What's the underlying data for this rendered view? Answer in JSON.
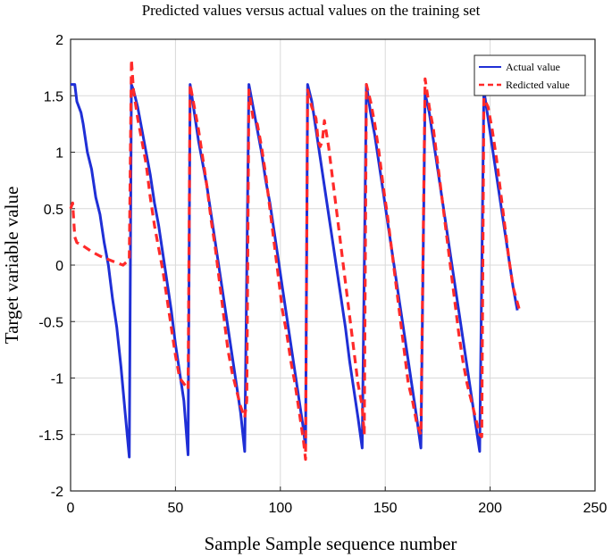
{
  "chart_data": {
    "type": "line",
    "title": "Predicted values versus actual values on the training set",
    "xlabel": "Sample Sample sequence number",
    "ylabel": "Target variable value",
    "xlim": [
      0,
      250
    ],
    "ylim": [
      -2,
      2
    ],
    "xticks": [
      0,
      50,
      100,
      150,
      200,
      250
    ],
    "yticks": [
      2,
      1.5,
      1,
      0.5,
      0,
      -0.5,
      -1,
      -1.5,
      -2
    ],
    "xtick_labels": [
      "0",
      "50",
      "100",
      "150",
      "200",
      "250"
    ],
    "ytick_labels": [
      "2",
      "1.5",
      "1",
      "0.5",
      "0",
      "-0.5",
      "-1",
      "-1.5",
      "-2"
    ],
    "grid": true,
    "legend_position": "top-right",
    "series": [
      {
        "name": "Actual value",
        "color": "#1f2fd6",
        "style": "solid",
        "points": [
          [
            0,
            1.6
          ],
          [
            2,
            1.6
          ],
          [
            3,
            1.45
          ],
          [
            5,
            1.35
          ],
          [
            6,
            1.25
          ],
          [
            8,
            1.0
          ],
          [
            10,
            0.85
          ],
          [
            12,
            0.6
          ],
          [
            14,
            0.45
          ],
          [
            16,
            0.2
          ],
          [
            18,
            0.0
          ],
          [
            20,
            -0.3
          ],
          [
            22,
            -0.55
          ],
          [
            24,
            -0.9
          ],
          [
            26,
            -1.3
          ],
          [
            28,
            -1.7
          ],
          [
            29,
            1.6
          ],
          [
            30,
            1.55
          ],
          [
            32,
            1.4
          ],
          [
            34,
            1.2
          ],
          [
            36,
            1.0
          ],
          [
            38,
            0.8
          ],
          [
            40,
            0.55
          ],
          [
            42,
            0.35
          ],
          [
            44,
            0.1
          ],
          [
            46,
            -0.15
          ],
          [
            48,
            -0.4
          ],
          [
            50,
            -0.7
          ],
          [
            52,
            -0.95
          ],
          [
            54,
            -1.2
          ],
          [
            56,
            -1.68
          ],
          [
            57,
            1.6
          ],
          [
            59,
            1.35
          ],
          [
            61,
            1.1
          ],
          [
            63,
            0.9
          ],
          [
            65,
            0.7
          ],
          [
            67,
            0.45
          ],
          [
            69,
            0.2
          ],
          [
            71,
            -0.05
          ],
          [
            73,
            -0.3
          ],
          [
            75,
            -0.55
          ],
          [
            77,
            -0.8
          ],
          [
            79,
            -1.05
          ],
          [
            81,
            -1.3
          ],
          [
            83,
            -1.65
          ],
          [
            85,
            1.6
          ],
          [
            87,
            1.4
          ],
          [
            89,
            1.2
          ],
          [
            91,
            1.0
          ],
          [
            93,
            0.75
          ],
          [
            95,
            0.55
          ],
          [
            97,
            0.3
          ],
          [
            99,
            0.05
          ],
          [
            101,
            -0.2
          ],
          [
            103,
            -0.45
          ],
          [
            105,
            -0.7
          ],
          [
            107,
            -0.95
          ],
          [
            109,
            -1.2
          ],
          [
            111,
            -1.45
          ],
          [
            112,
            -1.62
          ],
          [
            113,
            1.6
          ],
          [
            115,
            1.45
          ],
          [
            117,
            1.2
          ],
          [
            119,
            0.95
          ],
          [
            121,
            0.7
          ],
          [
            123,
            0.45
          ],
          [
            125,
            0.2
          ],
          [
            127,
            -0.05
          ],
          [
            129,
            -0.3
          ],
          [
            131,
            -0.55
          ],
          [
            133,
            -0.85
          ],
          [
            135,
            -1.1
          ],
          [
            137,
            -1.35
          ],
          [
            139,
            -1.62
          ],
          [
            141,
            1.6
          ],
          [
            143,
            1.35
          ],
          [
            145,
            1.15
          ],
          [
            147,
            0.9
          ],
          [
            149,
            0.65
          ],
          [
            151,
            0.4
          ],
          [
            153,
            0.15
          ],
          [
            155,
            -0.1
          ],
          [
            157,
            -0.35
          ],
          [
            159,
            -0.6
          ],
          [
            161,
            -0.85
          ],
          [
            163,
            -1.1
          ],
          [
            165,
            -1.35
          ],
          [
            167,
            -1.62
          ],
          [
            169,
            1.52
          ],
          [
            171,
            1.35
          ],
          [
            173,
            1.1
          ],
          [
            175,
            0.85
          ],
          [
            177,
            0.6
          ],
          [
            179,
            0.35
          ],
          [
            181,
            0.1
          ],
          [
            183,
            -0.15
          ],
          [
            185,
            -0.4
          ],
          [
            187,
            -0.65
          ],
          [
            189,
            -0.9
          ],
          [
            191,
            -1.15
          ],
          [
            193,
            -1.4
          ],
          [
            195,
            -1.65
          ],
          [
            197,
            1.55
          ],
          [
            199,
            1.3
          ],
          [
            201,
            1.05
          ],
          [
            203,
            0.8
          ],
          [
            205,
            0.55
          ],
          [
            207,
            0.3
          ],
          [
            209,
            0.05
          ],
          [
            211,
            -0.2
          ],
          [
            213,
            -0.4
          ]
        ]
      },
      {
        "name": "Redicted value",
        "color": "#ff2a2a",
        "style": "dashed",
        "points": [
          [
            0,
            0.5
          ],
          [
            1,
            0.55
          ],
          [
            2,
            0.25
          ],
          [
            3,
            0.2
          ],
          [
            6,
            0.17
          ],
          [
            10,
            0.12
          ],
          [
            14,
            0.08
          ],
          [
            18,
            0.05
          ],
          [
            22,
            0.02
          ],
          [
            25,
            0.0
          ],
          [
            28,
            0.05
          ],
          [
            29,
            1.82
          ],
          [
            30,
            1.55
          ],
          [
            32,
            1.3
          ],
          [
            34,
            1.1
          ],
          [
            36,
            0.9
          ],
          [
            38,
            0.6
          ],
          [
            40,
            0.35
          ],
          [
            42,
            0.15
          ],
          [
            44,
            -0.05
          ],
          [
            46,
            -0.3
          ],
          [
            48,
            -0.55
          ],
          [
            50,
            -0.8
          ],
          [
            52,
            -1.0
          ],
          [
            54,
            -1.05
          ],
          [
            56,
            -1.1
          ],
          [
            57,
            1.6
          ],
          [
            59,
            1.4
          ],
          [
            61,
            1.2
          ],
          [
            63,
            0.95
          ],
          [
            65,
            0.7
          ],
          [
            67,
            0.4
          ],
          [
            69,
            0.15
          ],
          [
            71,
            -0.15
          ],
          [
            73,
            -0.45
          ],
          [
            75,
            -0.75
          ],
          [
            77,
            -0.95
          ],
          [
            79,
            -1.1
          ],
          [
            81,
            -1.25
          ],
          [
            83,
            -1.35
          ],
          [
            84,
            -1.2
          ],
          [
            85,
            1.55
          ],
          [
            87,
            1.3
          ],
          [
            89,
            1.25
          ],
          [
            91,
            1.05
          ],
          [
            93,
            0.8
          ],
          [
            95,
            0.5
          ],
          [
            97,
            0.2
          ],
          [
            99,
            -0.1
          ],
          [
            101,
            -0.4
          ],
          [
            103,
            -0.6
          ],
          [
            105,
            -0.85
          ],
          [
            107,
            -1.05
          ],
          [
            109,
            -1.3
          ],
          [
            111,
            -1.55
          ],
          [
            112,
            -1.72
          ],
          [
            113,
            1.55
          ],
          [
            115,
            1.4
          ],
          [
            117,
            1.3
          ],
          [
            118,
            1.1
          ],
          [
            119,
            1.05
          ],
          [
            120,
            1.1
          ],
          [
            121,
            1.28
          ],
          [
            123,
            1.05
          ],
          [
            125,
            0.75
          ],
          [
            127,
            0.45
          ],
          [
            129,
            0.15
          ],
          [
            131,
            -0.15
          ],
          [
            133,
            -0.45
          ],
          [
            135,
            -0.75
          ],
          [
            137,
            -1.05
          ],
          [
            139,
            -1.25
          ],
          [
            140,
            -1.5
          ],
          [
            141,
            1.6
          ],
          [
            143,
            1.45
          ],
          [
            145,
            1.25
          ],
          [
            147,
            1.0
          ],
          [
            149,
            0.7
          ],
          [
            151,
            0.45
          ],
          [
            153,
            0.15
          ],
          [
            155,
            -0.15
          ],
          [
            157,
            -0.45
          ],
          [
            159,
            -0.75
          ],
          [
            161,
            -1.05
          ],
          [
            163,
            -1.2
          ],
          [
            165,
            -1.4
          ],
          [
            167,
            -1.5
          ],
          [
            169,
            1.65
          ],
          [
            171,
            1.4
          ],
          [
            173,
            1.2
          ],
          [
            175,
            0.9
          ],
          [
            177,
            0.6
          ],
          [
            179,
            0.3
          ],
          [
            181,
            0.0
          ],
          [
            183,
            -0.3
          ],
          [
            185,
            -0.6
          ],
          [
            187,
            -0.85
          ],
          [
            189,
            -1.05
          ],
          [
            191,
            -1.2
          ],
          [
            193,
            -1.35
          ],
          [
            195,
            -1.5
          ],
          [
            196,
            -1.52
          ],
          [
            197,
            1.48
          ],
          [
            199,
            1.4
          ],
          [
            201,
            1.2
          ],
          [
            203,
            0.95
          ],
          [
            205,
            0.65
          ],
          [
            207,
            0.35
          ],
          [
            209,
            0.05
          ],
          [
            211,
            -0.2
          ],
          [
            214,
            -0.4
          ]
        ]
      }
    ]
  }
}
